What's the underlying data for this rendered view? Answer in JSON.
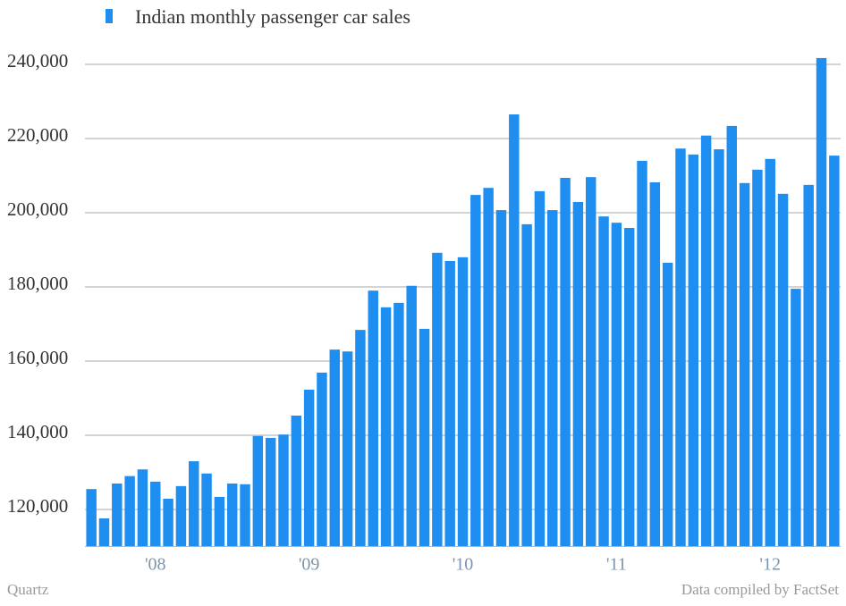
{
  "chart_data": {
    "type": "bar",
    "legend": "Indian monthly passenger car sales",
    "source_left": "Quartz",
    "source_right": "Data compiled by FactSet",
    "color": "#1f8ef1",
    "grid": true,
    "categories": [
      null,
      null,
      null,
      null,
      null,
      "'08",
      null,
      null,
      null,
      null,
      null,
      null,
      null,
      null,
      null,
      null,
      null,
      "'09",
      null,
      null,
      null,
      null,
      null,
      null,
      null,
      null,
      null,
      null,
      null,
      "'10",
      null,
      null,
      null,
      null,
      null,
      null,
      null,
      null,
      null,
      null,
      null,
      "'11",
      null,
      null,
      null,
      null,
      null,
      null,
      null,
      null,
      null,
      null,
      null,
      "'12",
      null,
      null,
      null,
      null,
      null
    ],
    "values": [
      125500,
      117600,
      127000,
      129000,
      130800,
      127500,
      122900,
      126300,
      133000,
      129700,
      123400,
      127000,
      126800,
      139800,
      139300,
      140200,
      145300,
      152300,
      156900,
      163100,
      162600,
      168400,
      179000,
      174500,
      175700,
      180300,
      168700,
      189200,
      187000,
      188000,
      204800,
      206700,
      200700,
      226500,
      196900,
      205800,
      200700,
      209400,
      202900,
      209600,
      199000,
      197300,
      195900,
      214000,
      208200,
      186500,
      217300,
      215700,
      220800,
      217100,
      223400,
      208000,
      211600,
      214500,
      205100,
      179500,
      207500,
      241700,
      215400
    ],
    "ylim": [
      110000,
      245000
    ],
    "yticks": [
      {
        "value": 120000,
        "label": "120,000"
      },
      {
        "value": 140000,
        "label": "140,000"
      },
      {
        "value": 160000,
        "label": "160,000"
      },
      {
        "value": 180000,
        "label": "180,000"
      },
      {
        "value": 200000,
        "label": "200,000"
      },
      {
        "value": 220000,
        "label": "220,000"
      },
      {
        "value": 240000,
        "label": "240,000"
      }
    ]
  }
}
